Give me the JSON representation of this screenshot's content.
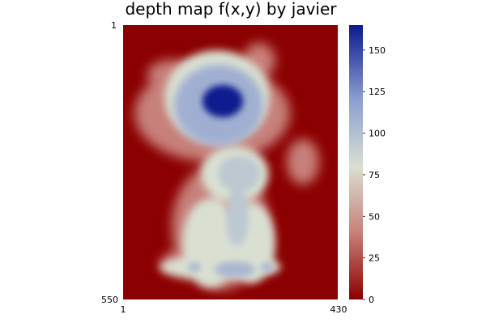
{
  "chart_data": {
    "type": "heatmap",
    "title": "depth map f(x,y) by javier",
    "xlabel": "",
    "ylabel": "",
    "x_ticks": [
      "1",
      "430"
    ],
    "y_ticks": [
      "1",
      "550"
    ],
    "xlim": [
      1,
      430
    ],
    "ylim": [
      1,
      550
    ],
    "yflip": true,
    "colormap": {
      "name": "diverging blue-white-red",
      "stops": [
        {
          "value": 0,
          "color": "#8b0000"
        },
        {
          "value": 40,
          "color": "#c7807a"
        },
        {
          "value": 80,
          "color": "#d9e0d2"
        },
        {
          "value": 120,
          "color": "#8d9fd0"
        },
        {
          "value": 165,
          "color": "#0a1a8f"
        }
      ]
    },
    "colorbar": {
      "ticks": [
        0,
        25,
        50,
        75,
        100,
        125,
        150
      ],
      "tick_labels": [
        "0",
        "25",
        "50",
        "75",
        "100",
        "125",
        "150"
      ],
      "range": [
        0,
        165
      ]
    },
    "background_value": 0,
    "peak_value": 165,
    "regions": [
      {
        "name": "silhouette-halo",
        "value": 40
      },
      {
        "name": "body",
        "value": 80
      },
      {
        "name": "head",
        "value": 110
      },
      {
        "name": "head-center",
        "value": 165
      },
      {
        "name": "chest",
        "value": 95
      },
      {
        "name": "feet",
        "value": 105
      }
    ]
  }
}
